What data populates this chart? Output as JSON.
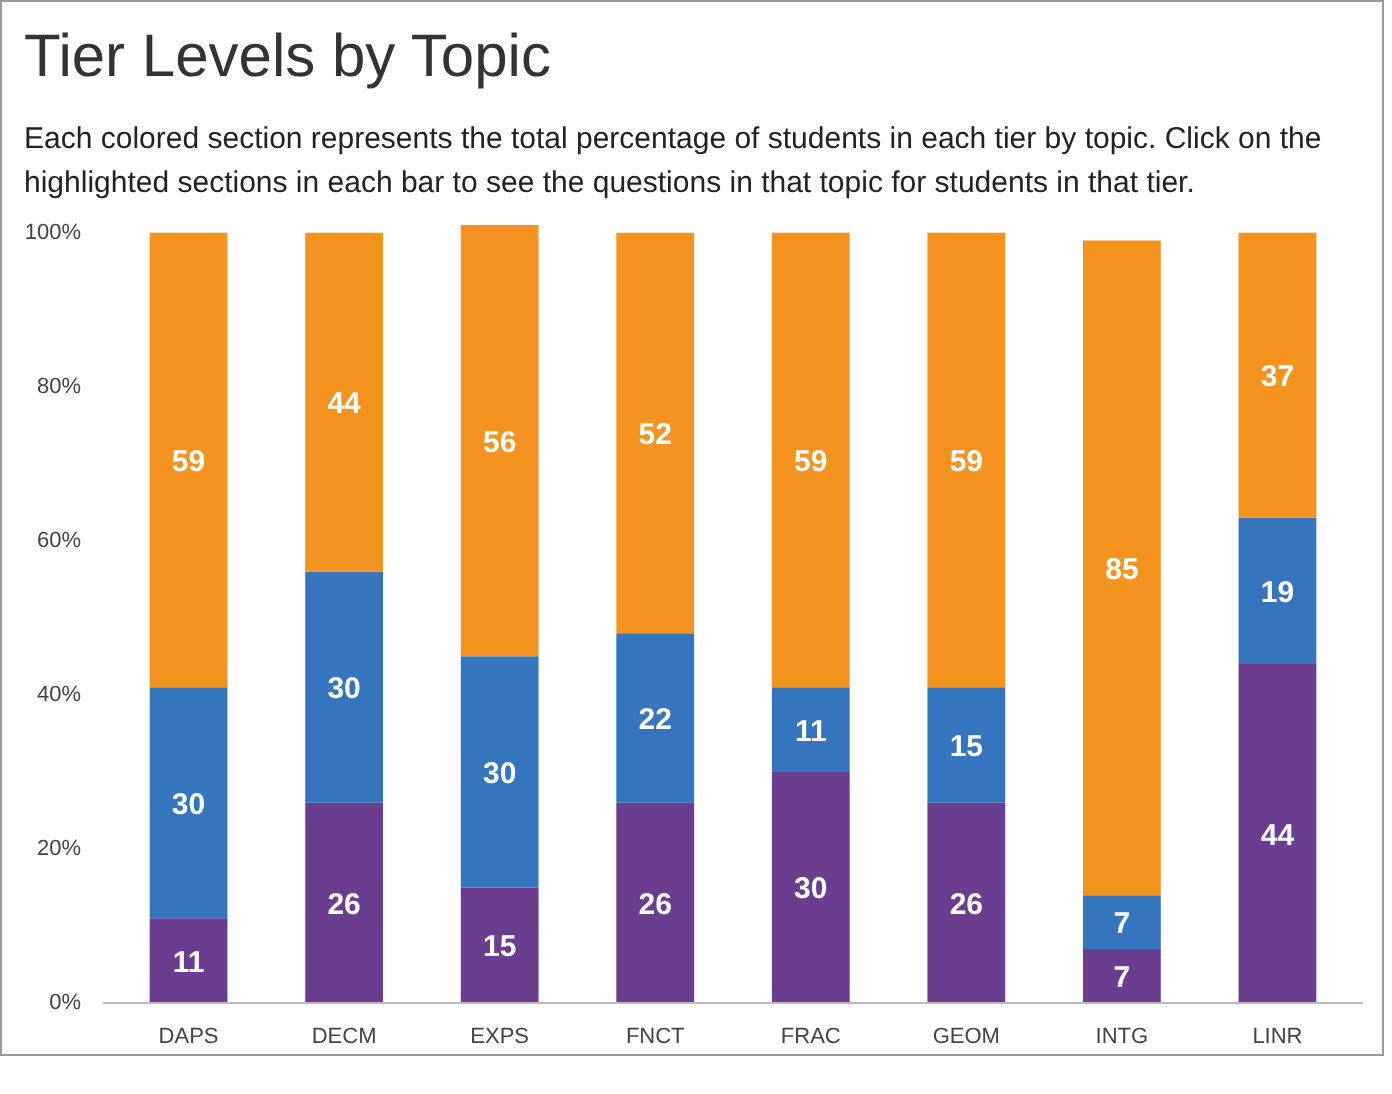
{
  "chart_data": {
    "type": "bar",
    "title": "Tier Levels by Topic",
    "subtitle": "Each colored section represents the total percentage of students in each tier by topic. Click on the highlighted sections in each bar to see the questions in that topic for students in that tier.",
    "categories": [
      "DAPS",
      "DECM",
      "EXPS",
      "FNCT",
      "FRAC",
      "GEOM",
      "INTG",
      "LINR"
    ],
    "stacked": true,
    "data_labels": true,
    "grid": false,
    "ylim": [
      0,
      101
    ],
    "yticks": [
      {
        "value": 0,
        "label": "0%"
      },
      {
        "value": 20,
        "label": "20%"
      },
      {
        "value": 40,
        "label": "40%"
      },
      {
        "value": 60,
        "label": "60%"
      },
      {
        "value": 80,
        "label": "80%"
      },
      {
        "value": 100,
        "label": "100%"
      }
    ],
    "series": [
      {
        "color": "#6a3d8f",
        "values": [
          11,
          26,
          15,
          26,
          30,
          26,
          7,
          44
        ]
      },
      {
        "color": "#3575bd",
        "values": [
          30,
          30,
          30,
          22,
          11,
          15,
          7,
          19
        ]
      },
      {
        "color": "#f4931f",
        "values": [
          59,
          44,
          56,
          52,
          59,
          59,
          85,
          37
        ]
      }
    ]
  }
}
